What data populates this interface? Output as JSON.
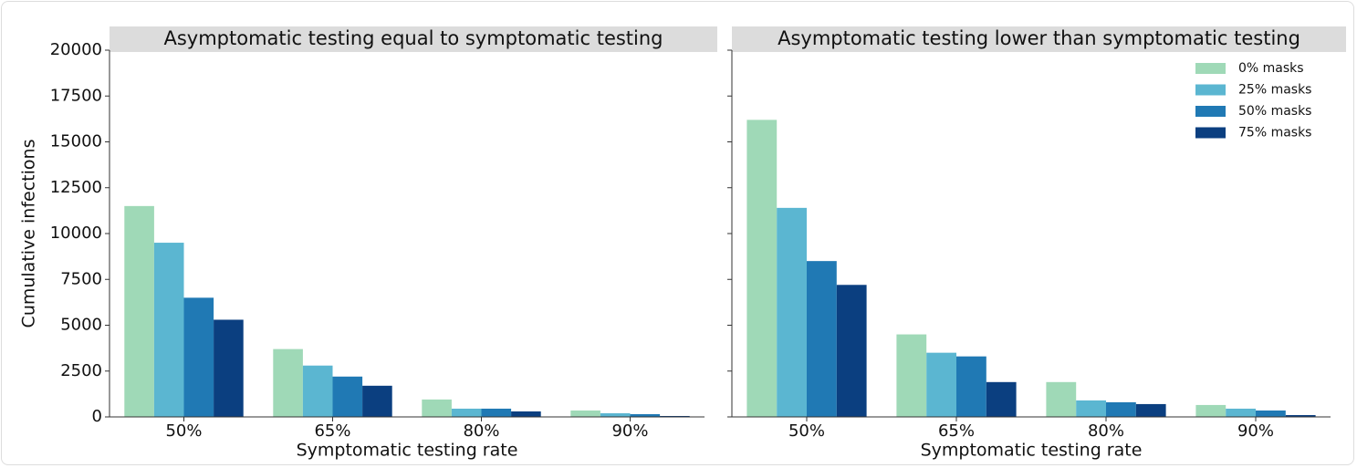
{
  "chart_data": [
    {
      "type": "bar",
      "title": "Asymptomatic testing equal to symptomatic testing",
      "xlabel": "Symptomatic testing rate",
      "ylabel": "Cumulative infections",
      "categories": [
        "50%",
        "65%",
        "80%",
        "90%"
      ],
      "series": [
        {
          "name": "0% masks",
          "color": "#9fd9b7",
          "values": [
            11500,
            3700,
            950,
            350
          ]
        },
        {
          "name": "25% masks",
          "color": "#5bb6d1",
          "values": [
            9500,
            2800,
            450,
            200
          ]
        },
        {
          "name": "50% masks",
          "color": "#2079b4",
          "values": [
            6500,
            2200,
            450,
            150
          ]
        },
        {
          "name": "75% masks",
          "color": "#0b3f80",
          "values": [
            5300,
            1700,
            300,
            50
          ]
        }
      ],
      "ylim": [
        0,
        20000
      ],
      "yticks": [
        0,
        2500,
        5000,
        7500,
        10000,
        12500,
        15000,
        17500,
        20000
      ]
    },
    {
      "type": "bar",
      "title": "Asymptomatic testing lower than symptomatic testing",
      "xlabel": "Symptomatic testing rate",
      "categories": [
        "50%",
        "65%",
        "80%",
        "90%"
      ],
      "series": [
        {
          "name": "0% masks",
          "color": "#9fd9b7",
          "values": [
            16200,
            4500,
            1900,
            650
          ]
        },
        {
          "name": "25% masks",
          "color": "#5bb6d1",
          "values": [
            11400,
            3500,
            900,
            450
          ]
        },
        {
          "name": "50% masks",
          "color": "#2079b4",
          "values": [
            8500,
            3300,
            800,
            350
          ]
        },
        {
          "name": "75% masks",
          "color": "#0b3f80",
          "values": [
            7200,
            1900,
            700,
            100
          ]
        }
      ],
      "ylim": [
        0,
        20000
      ],
      "yticks": [
        0,
        2500,
        5000,
        7500,
        10000,
        12500,
        15000,
        17500,
        20000
      ],
      "legend": "upper right"
    }
  ]
}
